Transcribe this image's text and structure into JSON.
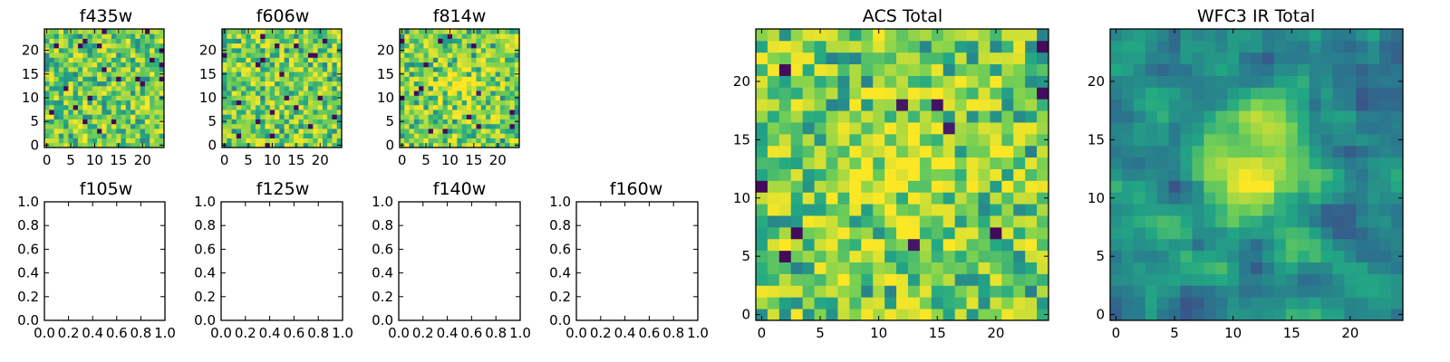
{
  "figure": {
    "colormap": "viridis",
    "colormap_stops": [
      "#440154",
      "#414487",
      "#2a788e",
      "#22a884",
      "#7ad151",
      "#fde725"
    ]
  },
  "chart_data": [
    {
      "id": "f435w",
      "type": "heatmap",
      "title": "f435w",
      "grid_size": 25,
      "xticks": [
        0,
        5,
        10,
        15,
        20
      ],
      "yticks": [
        0,
        5,
        10,
        15,
        20
      ],
      "xlim": [
        -0.5,
        24.5
      ],
      "ylim": [
        -0.5,
        24.5
      ],
      "value_range": [
        0,
        1
      ],
      "texture": "noise",
      "seed": 11,
      "hotspots": []
    },
    {
      "id": "f606w",
      "type": "heatmap",
      "title": "f606w",
      "grid_size": 25,
      "xticks": [
        0,
        5,
        10,
        15,
        20
      ],
      "yticks": [
        0,
        5,
        10,
        15,
        20
      ],
      "xlim": [
        -0.5,
        24.5
      ],
      "ylim": [
        -0.5,
        24.5
      ],
      "value_range": [
        0,
        1
      ],
      "texture": "noise",
      "seed": 23,
      "hotspots": []
    },
    {
      "id": "f814w",
      "type": "heatmap",
      "title": "f814w",
      "grid_size": 25,
      "xticks": [
        0,
        5,
        10,
        15,
        20
      ],
      "yticks": [
        0,
        5,
        10,
        15,
        20
      ],
      "xlim": [
        -0.5,
        24.5
      ],
      "ylim": [
        -0.5,
        24.5
      ],
      "value_range": [
        0,
        1
      ],
      "texture": "noise",
      "seed": 37,
      "hotspots": [
        {
          "x": 12,
          "y": 12,
          "sigma": 3,
          "amplitude": 0.2
        }
      ]
    },
    {
      "id": "f105w",
      "type": "empty",
      "title": "f105w",
      "xticks": [
        "0.0",
        "0.2",
        "0.4",
        "0.6",
        "0.8",
        "1.0"
      ],
      "yticks": [
        "0.0",
        "0.2",
        "0.4",
        "0.6",
        "0.8",
        "1.0"
      ],
      "xlim": [
        0,
        1
      ],
      "ylim": [
        0,
        1
      ]
    },
    {
      "id": "f125w",
      "type": "empty",
      "title": "f125w",
      "xticks": [
        "0.0",
        "0.2",
        "0.4",
        "0.6",
        "0.8",
        "1.0"
      ],
      "yticks": [
        "0.0",
        "0.2",
        "0.4",
        "0.6",
        "0.8",
        "1.0"
      ],
      "xlim": [
        0,
        1
      ],
      "ylim": [
        0,
        1
      ]
    },
    {
      "id": "f140w",
      "type": "empty",
      "title": "f140w",
      "xticks": [
        "0.0",
        "0.2",
        "0.4",
        "0.6",
        "0.8",
        "1.0"
      ],
      "yticks": [
        "0.0",
        "0.2",
        "0.4",
        "0.6",
        "0.8",
        "1.0"
      ],
      "xlim": [
        0,
        1
      ],
      "ylim": [
        0,
        1
      ]
    },
    {
      "id": "f160w",
      "type": "empty",
      "title": "f160w",
      "xticks": [
        "0.0",
        "0.2",
        "0.4",
        "0.6",
        "0.8",
        "1.0"
      ],
      "yticks": [
        "0.0",
        "0.2",
        "0.4",
        "0.6",
        "0.8",
        "1.0"
      ],
      "xlim": [
        0,
        1
      ],
      "ylim": [
        0,
        1
      ]
    },
    {
      "id": "acs-total",
      "type": "heatmap",
      "title": "ACS Total",
      "grid_size": 25,
      "xticks": [
        0,
        5,
        10,
        15,
        20
      ],
      "yticks": [
        0,
        5,
        10,
        15,
        20
      ],
      "xlim": [
        -0.5,
        24.5
      ],
      "ylim": [
        -0.5,
        24.5
      ],
      "value_range": [
        0,
        1
      ],
      "texture": "noise",
      "seed": 53,
      "hotspots": [
        {
          "x": 12,
          "y": 12,
          "sigma": 4,
          "amplitude": 0.15
        }
      ]
    },
    {
      "id": "wfc3-ir-total",
      "type": "heatmap",
      "title": "WFC3 IR Total",
      "grid_size": 25,
      "xticks": [
        0,
        5,
        10,
        15,
        20
      ],
      "yticks": [
        0,
        5,
        10,
        15,
        20
      ],
      "xlim": [
        -0.5,
        24.5
      ],
      "ylim": [
        -0.5,
        24.5
      ],
      "value_range": [
        0,
        1
      ],
      "texture": "smooth",
      "seed": 71,
      "hotspots": [
        {
          "x": 12.5,
          "y": 13,
          "sigma": 2.8,
          "amplitude": 0.45
        }
      ]
    }
  ]
}
